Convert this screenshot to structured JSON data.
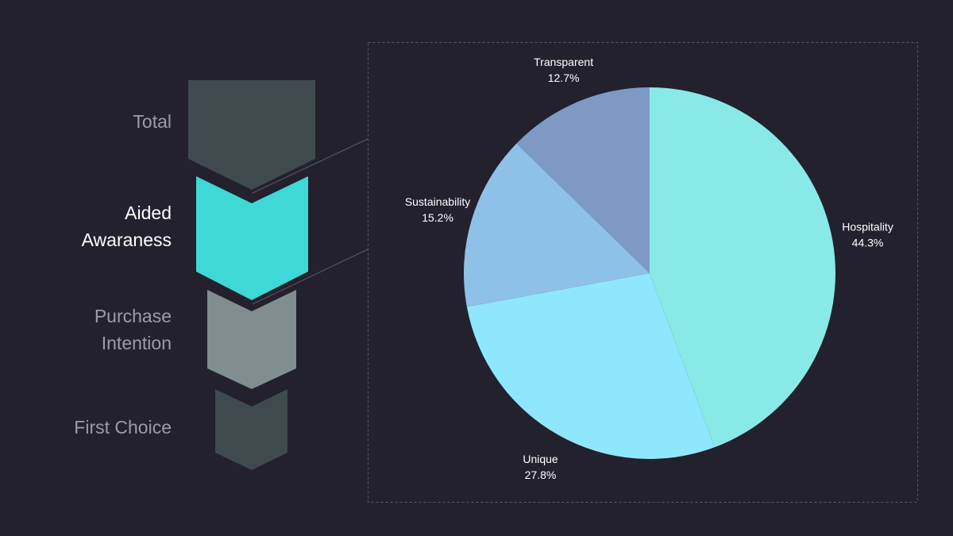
{
  "funnel": {
    "active_index": 1,
    "stages": [
      {
        "label_lines": [
          "Total"
        ],
        "color": "#3f4a4e"
      },
      {
        "label_lines": [
          "Aided",
          "Awaraness"
        ],
        "color": "#3ed8d6"
      },
      {
        "label_lines": [
          "Purchase",
          "Intention"
        ],
        "color": "#818e8f"
      },
      {
        "label_lines": [
          "First Choice"
        ],
        "color": "#3f4a4e"
      }
    ]
  },
  "chart_data": {
    "type": "pie",
    "start_angle_deg": 0,
    "direction": "clockwise",
    "slices": [
      {
        "label": "Hospitality",
        "value": 44.3,
        "display": "44.3%",
        "color": "#89e9e7"
      },
      {
        "label": "Unique",
        "value": 27.8,
        "display": "27.8%",
        "color": "#8fe7fd"
      },
      {
        "label": "Sustainability",
        "value": 15.2,
        "display": "15.2%",
        "color": "#8ec1e8"
      },
      {
        "label": "Transparent",
        "value": 12.7,
        "display": "12.7%",
        "color": "#7f99c5"
      }
    ]
  }
}
